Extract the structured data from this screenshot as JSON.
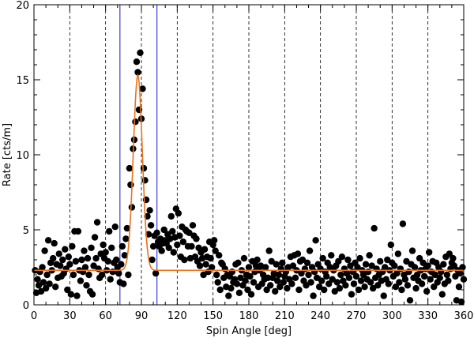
{
  "chart_data": {
    "type": "scatter",
    "title": "",
    "xlabel": "Spin Angle [deg]",
    "ylabel": "Rate [cts/m]",
    "xlim": [
      0,
      360
    ],
    "ylim": [
      0,
      20
    ],
    "x_ticks": [
      0,
      30,
      60,
      90,
      120,
      150,
      180,
      210,
      240,
      270,
      300,
      330,
      360
    ],
    "y_ticks": [
      0,
      5,
      10,
      15,
      20
    ],
    "grid": "dashed vertical lines every 30 deg",
    "points": [
      [
        1,
        2.3
      ],
      [
        2,
        0.8
      ],
      [
        3,
        1.7
      ],
      [
        4,
        1.3
      ],
      [
        5,
        2.2
      ],
      [
        6,
        0.9
      ],
      [
        7,
        2.5
      ],
      [
        8,
        1.5
      ],
      [
        9,
        3.6
      ],
      [
        10,
        1.1
      ],
      [
        11,
        2.0
      ],
      [
        12,
        4.3
      ],
      [
        13,
        1.4
      ],
      [
        14,
        2.8
      ],
      [
        15,
        2.3
      ],
      [
        16,
        3.1
      ],
      [
        17,
        4.1
      ],
      [
        18,
        1.2
      ],
      [
        19,
        2.7
      ],
      [
        20,
        1.8
      ],
      [
        21,
        3.4
      ],
      [
        22,
        2.6
      ],
      [
        23,
        1.9
      ],
      [
        24,
        3.0
      ],
      [
        25,
        2.1
      ],
      [
        26,
        3.7
      ],
      [
        27,
        2.4
      ],
      [
        28,
        1.0
      ],
      [
        29,
        3.2
      ],
      [
        30,
        2.7
      ],
      [
        31,
        0.7
      ],
      [
        32,
        3.9
      ],
      [
        33,
        2.0
      ],
      [
        34,
        4.9
      ],
      [
        35,
        2.9
      ],
      [
        36,
        0.6
      ],
      [
        37,
        4.9
      ],
      [
        38,
        2.3
      ],
      [
        39,
        1.6
      ],
      [
        40,
        3.0
      ],
      [
        41,
        2.2
      ],
      [
        42,
        3.6
      ],
      [
        43,
        2.5
      ],
      [
        44,
        1.3
      ],
      [
        45,
        3.1
      ],
      [
        46,
        2.0
      ],
      [
        47,
        0.9
      ],
      [
        48,
        3.8
      ],
      [
        49,
        0.7
      ],
      [
        50,
        2.6
      ],
      [
        51,
        4.5
      ],
      [
        52,
        3.1
      ],
      [
        53,
        5.5
      ],
      [
        54,
        2.4
      ],
      [
        55,
        1.8
      ],
      [
        56,
        3.4
      ],
      [
        57,
        2.0
      ],
      [
        58,
        4.0
      ],
      [
        59,
        3.1
      ],
      [
        60,
        3.5
      ],
      [
        61,
        2.3
      ],
      [
        62,
        2.9
      ],
      [
        63,
        4.9
      ],
      [
        64,
        1.7
      ],
      [
        65,
        3.8
      ],
      [
        66,
        2.2
      ],
      [
        67,
        2.8
      ],
      [
        68,
        5.2
      ],
      [
        69,
        3.0
      ],
      [
        70,
        2.5
      ],
      [
        71,
        2.1
      ],
      [
        72,
        1.5
      ],
      [
        73,
        2.7
      ],
      [
        74,
        3.9
      ],
      [
        75,
        1.4
      ],
      [
        76,
        3.3
      ],
      [
        77,
        4.4
      ],
      [
        78,
        5.1
      ],
      [
        79,
        2.0
      ],
      [
        80,
        9.1
      ],
      [
        81,
        8.0
      ],
      [
        82,
        6.5
      ],
      [
        83,
        10.4
      ],
      [
        84,
        11.0
      ],
      [
        85,
        12.2
      ],
      [
        86,
        16.2
      ],
      [
        87,
        15.5
      ],
      [
        88,
        13.0
      ],
      [
        89,
        16.8
      ],
      [
        90,
        12.4
      ],
      [
        91,
        14.4
      ],
      [
        92,
        9.1
      ],
      [
        93,
        8.3
      ],
      [
        94,
        7.0
      ],
      [
        95,
        5.9
      ],
      [
        96,
        4.7
      ],
      [
        97,
        6.3
      ],
      [
        98,
        5.3
      ],
      [
        99,
        3.0
      ],
      [
        100,
        3.9
      ],
      [
        101,
        4.6
      ],
      [
        102,
        2.1
      ],
      [
        103,
        4.8
      ],
      [
        104,
        4.2
      ],
      [
        105,
        3.9
      ],
      [
        106,
        4.4
      ],
      [
        107,
        3.6
      ],
      [
        108,
        4.1
      ],
      [
        109,
        5.0
      ],
      [
        110,
        4.3
      ],
      [
        111,
        4.1
      ],
      [
        112,
        4.7
      ],
      [
        113,
        3.8
      ],
      [
        114,
        4.4
      ],
      [
        115,
        5.9
      ],
      [
        116,
        4.9
      ],
      [
        117,
        3.5
      ],
      [
        118,
        4.5
      ],
      [
        119,
        6.4
      ],
      [
        120,
        4.0
      ],
      [
        121,
        6.1
      ],
      [
        122,
        4.6
      ],
      [
        123,
        3.2
      ],
      [
        124,
        5.2
      ],
      [
        125,
        4.2
      ],
      [
        126,
        3.0
      ],
      [
        127,
        5.0
      ],
      [
        128,
        4.9
      ],
      [
        129,
        3.9
      ],
      [
        130,
        4.8
      ],
      [
        131,
        3.1
      ],
      [
        132,
        3.9
      ],
      [
        133,
        5.3
      ],
      [
        134,
        4.6
      ],
      [
        135,
        3.2
      ],
      [
        136,
        4.4
      ],
      [
        137,
        2.9
      ],
      [
        138,
        3.8
      ],
      [
        139,
        2.6
      ],
      [
        140,
        3.5
      ],
      [
        141,
        3.1
      ],
      [
        142,
        2.0
      ],
      [
        143,
        3.7
      ],
      [
        144,
        2.7
      ],
      [
        145,
        3.2
      ],
      [
        146,
        2.2
      ],
      [
        147,
        4.2
      ],
      [
        148,
        3.1
      ],
      [
        149,
        2.5
      ],
      [
        150,
        4.0
      ],
      [
        151,
        4.3
      ],
      [
        152,
        3.6
      ],
      [
        153,
        2.0
      ],
      [
        154,
        1.5
      ],
      [
        155,
        3.3
      ],
      [
        156,
        1.0
      ],
      [
        157,
        2.8
      ],
      [
        158,
        2.7
      ],
      [
        159,
        1.8
      ],
      [
        160,
        2.4
      ],
      [
        161,
        1.2
      ],
      [
        162,
        2.0
      ],
      [
        163,
        0.6
      ],
      [
        164,
        1.9
      ],
      [
        165,
        1.1
      ],
      [
        166,
        2.2
      ],
      [
        167,
        1.5
      ],
      [
        168,
        1.7
      ],
      [
        169,
        2.7
      ],
      [
        170,
        1.4
      ],
      [
        171,
        2.8
      ],
      [
        172,
        0.8
      ],
      [
        173,
        1.8
      ],
      [
        174,
        2.3
      ],
      [
        175,
        1.3
      ],
      [
        176,
        3.1
      ],
      [
        177,
        1.6
      ],
      [
        178,
        2.0
      ],
      [
        179,
        1.0
      ],
      [
        180,
        2.5
      ],
      [
        181,
        1.9
      ],
      [
        182,
        0.7
      ],
      [
        183,
        2.9
      ],
      [
        184,
        1.5
      ],
      [
        185,
        2.2
      ],
      [
        186,
        2.6
      ],
      [
        187,
        3.0
      ],
      [
        188,
        1.2
      ],
      [
        189,
        2.3
      ],
      [
        190,
        2.6
      ],
      [
        191,
        1.4
      ],
      [
        192,
        2.0
      ],
      [
        193,
        1.7
      ],
      [
        194,
        2.5
      ],
      [
        195,
        1.0
      ],
      [
        196,
        1.8
      ],
      [
        197,
        3.6
      ],
      [
        198,
        1.3
      ],
      [
        199,
        2.9
      ],
      [
        200,
        1.8
      ],
      [
        201,
        2.1
      ],
      [
        202,
        0.9
      ],
      [
        203,
        2.7
      ],
      [
        204,
        1.6
      ],
      [
        205,
        2.0
      ],
      [
        206,
        1.2
      ],
      [
        207,
        2.4
      ],
      [
        208,
        2.8
      ],
      [
        209,
        1.5
      ],
      [
        210,
        1.9
      ],
      [
        211,
        2.2
      ],
      [
        212,
        1.1
      ],
      [
        213,
        2.5
      ],
      [
        214,
        1.7
      ],
      [
        215,
        3.2
      ],
      [
        216,
        1.4
      ],
      [
        217,
        2.6
      ],
      [
        218,
        3.3
      ],
      [
        219,
        1.8
      ],
      [
        220,
        2.3
      ],
      [
        221,
        3.4
      ],
      [
        222,
        1.0
      ],
      [
        223,
        2.9
      ],
      [
        224,
        2.1
      ],
      [
        225,
        3.0
      ],
      [
        226,
        1.6
      ],
      [
        227,
        2.4
      ],
      [
        228,
        1.3
      ],
      [
        229,
        2.8
      ],
      [
        230,
        2.0
      ],
      [
        231,
        3.6
      ],
      [
        232,
        1.5
      ],
      [
        233,
        2.5
      ],
      [
        234,
        0.6
      ],
      [
        235,
        2.2
      ],
      [
        236,
        4.3
      ],
      [
        237,
        1.8
      ],
      [
        238,
        2.7
      ],
      [
        239,
        1.2
      ],
      [
        240,
        2.4
      ],
      [
        241,
        1.6
      ],
      [
        242,
        3.1
      ],
      [
        243,
        1.0
      ],
      [
        244,
        2.2
      ],
      [
        245,
        1.9
      ],
      [
        246,
        2.8
      ],
      [
        247,
        1.4
      ],
      [
        248,
        2.5
      ],
      [
        249,
        3.3
      ],
      [
        250,
        1.7
      ],
      [
        251,
        2.3
      ],
      [
        252,
        0.9
      ],
      [
        253,
        2.6
      ],
      [
        254,
        1.5
      ],
      [
        255,
        2.9
      ],
      [
        256,
        1.1
      ],
      [
        257,
        2.0
      ],
      [
        258,
        3.2
      ],
      [
        259,
        1.6
      ],
      [
        260,
        2.4
      ],
      [
        261,
        1.3
      ],
      [
        262,
        2.1
      ],
      [
        263,
        3.0
      ],
      [
        264,
        1.8
      ],
      [
        265,
        2.6
      ],
      [
        266,
        0.7
      ],
      [
        267,
        2.2
      ],
      [
        268,
        1.4
      ],
      [
        269,
        2.8
      ],
      [
        270,
        1.9
      ],
      [
        271,
        2.5
      ],
      [
        272,
        1.0
      ],
      [
        273,
        3.1
      ],
      [
        274,
        1.6
      ],
      [
        275,
        2.3
      ],
      [
        276,
        2.0
      ],
      [
        277,
        1.2
      ],
      [
        278,
        2.7
      ],
      [
        279,
        1.7
      ],
      [
        280,
        2.2
      ],
      [
        281,
        3.3
      ],
      [
        282,
        1.5
      ],
      [
        283,
        2.6
      ],
      [
        284,
        1.1
      ],
      [
        285,
        5.1
      ],
      [
        286,
        1.8
      ],
      [
        287,
        2.4
      ],
      [
        288,
        1.3
      ],
      [
        289,
        2.0
      ],
      [
        290,
        2.9
      ],
      [
        291,
        1.6
      ],
      [
        292,
        2.2
      ],
      [
        293,
        0.6
      ],
      [
        294,
        2.5
      ],
      [
        295,
        1.7
      ],
      [
        296,
        3.0
      ],
      [
        297,
        1.4
      ],
      [
        298,
        2.3
      ],
      [
        299,
        4.0
      ],
      [
        300,
        2.8
      ],
      [
        301,
        1.9
      ],
      [
        302,
        2.6
      ],
      [
        303,
        1.2
      ],
      [
        304,
        2.1
      ],
      [
        305,
        3.4
      ],
      [
        306,
        1.5
      ],
      [
        307,
        2.4
      ],
      [
        308,
        1.0
      ],
      [
        309,
        5.4
      ],
      [
        310,
        2.0
      ],
      [
        311,
        1.7
      ],
      [
        312,
        2.9
      ],
      [
        313,
        1.3
      ],
      [
        314,
        2.2
      ],
      [
        315,
        0.3
      ],
      [
        316,
        2.7
      ],
      [
        317,
        3.6
      ],
      [
        318,
        1.8
      ],
      [
        319,
        2.5
      ],
      [
        320,
        1.1
      ],
      [
        321,
        2.0
      ],
      [
        322,
        1.6
      ],
      [
        323,
        3.1
      ],
      [
        324,
        2.3
      ],
      [
        325,
        1.4
      ],
      [
        326,
        2.8
      ],
      [
        327,
        1.9
      ],
      [
        328,
        2.4
      ],
      [
        329,
        0.9
      ],
      [
        330,
        2.6
      ],
      [
        331,
        3.5
      ],
      [
        332,
        1.7
      ],
      [
        333,
        2.2
      ],
      [
        334,
        2.9
      ],
      [
        335,
        1.2
      ],
      [
        336,
        2.0
      ],
      [
        337,
        2.8
      ],
      [
        338,
        1.5
      ],
      [
        339,
        2.5
      ],
      [
        340,
        1.8
      ],
      [
        341,
        2.2
      ],
      [
        342,
        0.7
      ],
      [
        343,
        2.7
      ],
      [
        344,
        1.4
      ],
      [
        345,
        3.2
      ],
      [
        346,
        2.0
      ],
      [
        347,
        1.6
      ],
      [
        348,
        3.4
      ],
      [
        349,
        2.4
      ],
      [
        350,
        2.8
      ],
      [
        351,
        3.1
      ],
      [
        352,
        2.6
      ],
      [
        353,
        1.9
      ],
      [
        354,
        0.3
      ],
      [
        355,
        2.3
      ],
      [
        356,
        1.2
      ],
      [
        357,
        2.1
      ],
      [
        358,
        0.2
      ],
      [
        359,
        2.5
      ],
      [
        360,
        1.7
      ]
    ],
    "fit_curve": {
      "color": "#e8731e",
      "baseline": 2.3,
      "amplitude": 13.0,
      "center": 87,
      "sigma": 3.8
    },
    "vertical_markers": [
      {
        "x": 72,
        "color": "#4a4adf"
      },
      {
        "x": 103,
        "color": "#4a4adf"
      }
    ]
  }
}
